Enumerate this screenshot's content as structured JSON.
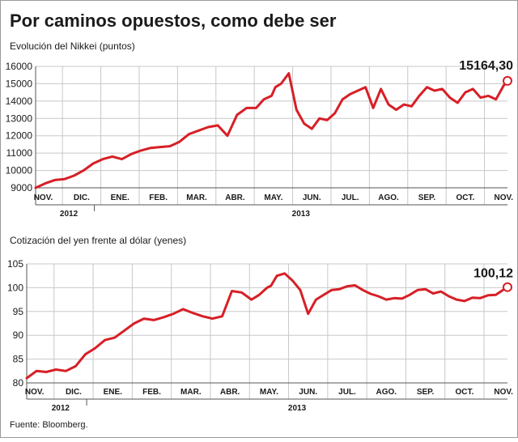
{
  "title": "Por caminos opuestos, como debe ser",
  "source": "Fuente: Bloomberg.",
  "colors": {
    "line": "#d71f26",
    "grid": "#c8c8c8",
    "text": "#1a1a1a",
    "axis": "#555555"
  },
  "chart_data": [
    {
      "type": "line",
      "subtitle": "Evolución del Nikkei (puntos)",
      "ylim": [
        9000,
        16000
      ],
      "yticks": [
        9000,
        10000,
        11000,
        12000,
        13000,
        14000,
        15000,
        16000
      ],
      "xlim": [
        10.8,
        23.1
      ],
      "x_unit": "month index (1 = enero 2012)",
      "months": [
        {
          "label": "NOV.",
          "x": 11
        },
        {
          "label": "DIC.",
          "x": 12
        },
        {
          "label": "ENE.",
          "x": 13
        },
        {
          "label": "FEB.",
          "x": 14
        },
        {
          "label": "MAR.",
          "x": 15
        },
        {
          "label": "ABR.",
          "x": 16
        },
        {
          "label": "MAY.",
          "x": 17
        },
        {
          "label": "JUN.",
          "x": 18
        },
        {
          "label": "JUL.",
          "x": 19
        },
        {
          "label": "AGO.",
          "x": 20
        },
        {
          "label": "SEP.",
          "x": 21
        },
        {
          "label": "OCT.",
          "x": 22
        },
        {
          "label": "NOV.",
          "x": 23
        }
      ],
      "years": [
        {
          "label": "2012",
          "from": 11,
          "to": 12.5
        },
        {
          "label": "2013",
          "from": 12.5,
          "to": 23.5
        }
      ],
      "end_label": "15164,30",
      "series": [
        {
          "x": [
            10.8,
            11.05,
            11.3,
            11.55,
            11.8,
            12.05,
            12.3,
            12.55,
            12.8,
            13.05,
            13.3,
            13.55,
            13.8,
            14.05,
            14.3,
            14.55,
            14.8,
            15.05,
            15.3,
            15.55,
            15.8,
            16.05,
            16.3,
            16.55,
            16.75,
            16.95,
            17.05,
            17.2,
            17.4,
            17.6,
            17.8,
            18.0,
            18.2,
            18.4,
            18.6,
            18.8,
            19.0,
            19.2,
            19.4,
            19.6,
            19.8,
            20.0,
            20.2,
            20.4,
            20.6,
            20.8,
            21.0,
            21.2,
            21.4,
            21.6,
            21.8,
            22.0,
            22.2,
            22.4,
            22.6,
            22.8,
            23.0,
            23.1
          ],
          "y": [
            9000,
            9250,
            9450,
            9500,
            9700,
            10000,
            10400,
            10650,
            10800,
            10650,
            10950,
            11150,
            11300,
            11350,
            11400,
            11650,
            12100,
            12300,
            12500,
            12600,
            12000,
            13200,
            13600,
            13600,
            14100,
            14300,
            14800,
            15000,
            15600,
            13500,
            12700,
            12400,
            13000,
            12900,
            13300,
            14100,
            14400,
            14600,
            14800,
            13600,
            14700,
            13800,
            13500,
            13800,
            13700,
            14300,
            14800,
            14600,
            14700,
            14200,
            13900,
            14500,
            14700,
            14200,
            14300,
            14100,
            14900,
            15164
          ]
        }
      ]
    },
    {
      "type": "line",
      "subtitle": "Cotización del yen frente al dólar (yenes)",
      "ylim": [
        80,
        105
      ],
      "yticks": [
        80,
        85,
        90,
        95,
        100,
        105
      ],
      "xlim": [
        10.8,
        23.1
      ],
      "x_unit": "month index (1 = enero 2012)",
      "months": [
        {
          "label": "NOV.",
          "x": 11
        },
        {
          "label": "DIC.",
          "x": 12
        },
        {
          "label": "ENE.",
          "x": 13
        },
        {
          "label": "FEB.",
          "x": 14
        },
        {
          "label": "MAR.",
          "x": 15
        },
        {
          "label": "ABR.",
          "x": 16
        },
        {
          "label": "MAY.",
          "x": 17
        },
        {
          "label": "JUN.",
          "x": 18
        },
        {
          "label": "JUL.",
          "x": 19
        },
        {
          "label": "AGO.",
          "x": 20
        },
        {
          "label": "SEP.",
          "x": 21
        },
        {
          "label": "OCT.",
          "x": 22
        },
        {
          "label": "NOV.",
          "x": 23
        }
      ],
      "years": [
        {
          "label": "2012",
          "from": 11,
          "to": 12.5
        },
        {
          "label": "2013",
          "from": 12.5,
          "to": 23.5
        }
      ],
      "end_label": "100,12",
      "series": [
        {
          "x": [
            10.8,
            11.05,
            11.3,
            11.55,
            11.8,
            12.05,
            12.3,
            12.55,
            12.8,
            13.05,
            13.3,
            13.55,
            13.8,
            14.05,
            14.3,
            14.55,
            14.8,
            15.05,
            15.3,
            15.55,
            15.8,
            16.05,
            16.3,
            16.55,
            16.75,
            16.95,
            17.05,
            17.2,
            17.4,
            17.6,
            17.8,
            18.0,
            18.2,
            18.4,
            18.6,
            18.8,
            19.0,
            19.2,
            19.4,
            19.6,
            19.8,
            20.0,
            20.2,
            20.4,
            20.6,
            20.8,
            21.0,
            21.2,
            21.4,
            21.6,
            21.8,
            22.0,
            22.2,
            22.4,
            22.6,
            22.8,
            23.0,
            23.1
          ],
          "y": [
            81,
            82.5,
            82.3,
            82.8,
            82.5,
            83.5,
            86,
            87.3,
            89,
            89.5,
            91,
            92.5,
            93.5,
            93.2,
            93.8,
            94.5,
            95.5,
            94.7,
            94,
            93.5,
            94,
            99.3,
            99,
            97.5,
            98.5,
            100,
            100.4,
            102.5,
            103,
            101.5,
            99.5,
            94.5,
            97.5,
            98.5,
            99.5,
            99.7,
            100.3,
            100.5,
            99.5,
            98.7,
            98.2,
            97.5,
            97.8,
            97.7,
            98.5,
            99.5,
            99.7,
            98.8,
            99.2,
            98.2,
            97.5,
            97.2,
            97.9,
            97.8,
            98.4,
            98.5,
            99.6,
            100.12
          ]
        }
      ]
    }
  ]
}
